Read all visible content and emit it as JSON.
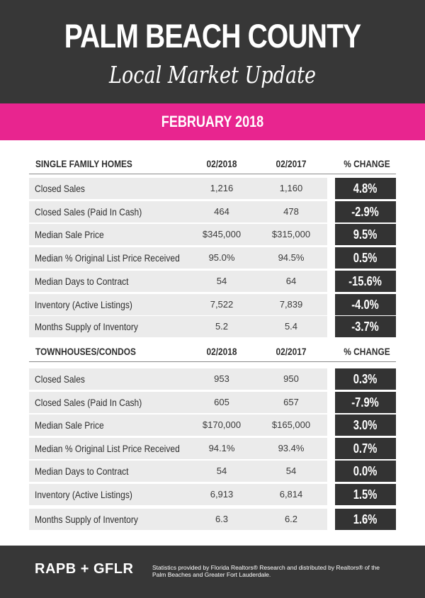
{
  "header": {
    "title": "PALM BEACH COUNTY",
    "subtitle": "Local Market Update"
  },
  "banner": {
    "month": "FEBRUARY 2018"
  },
  "colors": {
    "dark": "#373737",
    "accent": "#e8258f",
    "row_bg": "#ebebeb",
    "change_bg": "#333333"
  },
  "single_family": {
    "heading": "SINGLE FAMILY HOMES",
    "col1": "02/2018",
    "col2": "02/2017",
    "col3": "% CHANGE",
    "rows": [
      {
        "label": "Closed Sales",
        "v2018": "1,216",
        "v2017": "1,160",
        "change": "4.8%"
      },
      {
        "label": "Closed Sales (Paid In Cash)",
        "v2018": "464",
        "v2017": "478",
        "change": "-2.9%"
      },
      {
        "label": "Median Sale Price",
        "v2018": "$345,000",
        "v2017": "$315,000",
        "change": "9.5%"
      },
      {
        "label": "Median % Original List Price Received",
        "v2018": "95.0%",
        "v2017": "94.5%",
        "change": "0.5%"
      },
      {
        "label": "Median Days to Contract",
        "v2018": "54",
        "v2017": "64",
        "change": "-15.6%"
      },
      {
        "label": "Inventory (Active Listings)",
        "v2018": "7,522",
        "v2017": "7,839",
        "change": "-4.0%"
      },
      {
        "label": "Months Supply of Inventory",
        "v2018": "5.2",
        "v2017": "5.4",
        "change": "-3.7%"
      }
    ]
  },
  "townhouses": {
    "heading": "TOWNHOUSES/CONDOS",
    "col1": "02/2018",
    "col2": "02/2017",
    "col3": "% CHANGE",
    "rows": [
      {
        "label": "Closed Sales",
        "v2018": "953",
        "v2017": "950",
        "change": "0.3%"
      },
      {
        "label": "Closed Sales (Paid In Cash)",
        "v2018": "605",
        "v2017": "657",
        "change": "-7.9%"
      },
      {
        "label": "Median Sale Price",
        "v2018": "$170,000",
        "v2017": "$165,000",
        "change": "3.0%"
      },
      {
        "label": "Median % Original List Price Received",
        "v2018": "94.1%",
        "v2017": "93.4%",
        "change": "0.7%"
      },
      {
        "label": "Median Days to Contract",
        "v2018": "54",
        "v2017": "54",
        "change": "0.0%"
      },
      {
        "label": "Inventory (Active Listings)",
        "v2018": "6,913",
        "v2017": "6,814",
        "change": "1.5%"
      },
      {
        "label": "Months Supply of Inventory",
        "v2018": "6.3",
        "v2017": "6.2",
        "change": "1.6%"
      }
    ]
  },
  "footer": {
    "brand": "RAPB + GFLR",
    "note": "Statistics provided by Florida Realtors® Research and distributed by Realtors® of the Palm Beaches and Greater Fort Lauderdale."
  }
}
